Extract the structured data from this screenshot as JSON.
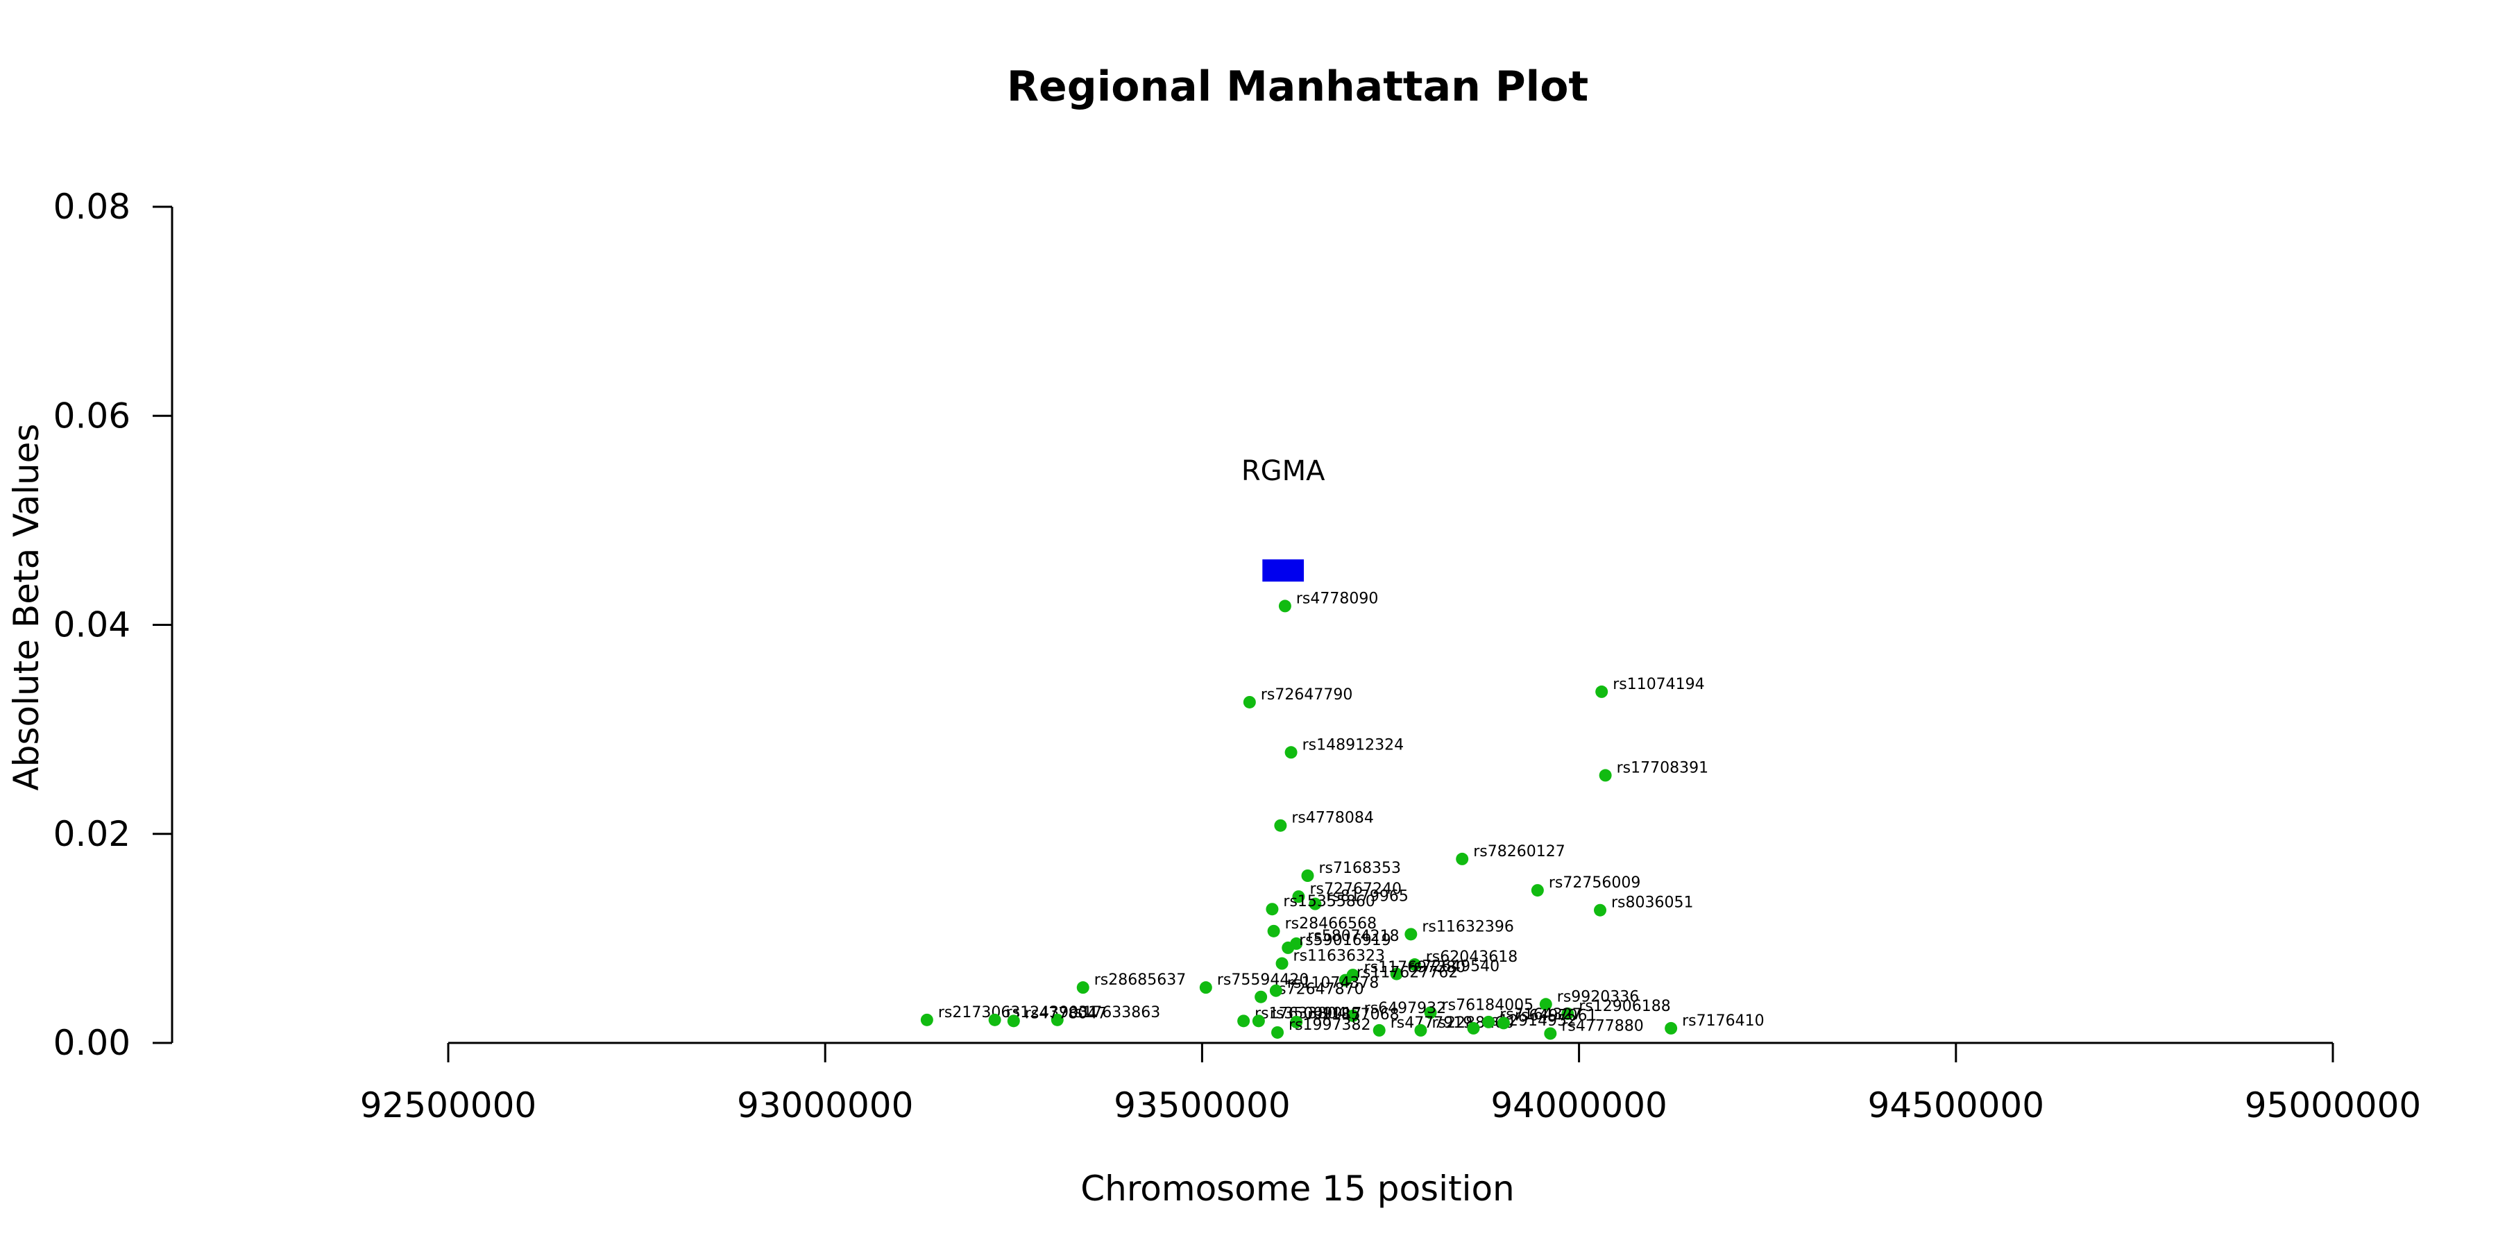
{
  "chart_data": {
    "type": "scatter",
    "title": "Regional Manhattan Plot",
    "xlabel": "Chromosome 15 position",
    "ylabel": "Absolute Beta Values",
    "xlim": [
      92100000,
      95100000
    ],
    "ylim": [
      0,
      0.08
    ],
    "x_ticks": [
      92500000,
      93000000,
      93500000,
      94000000,
      94500000,
      95000000
    ],
    "x_tick_labels": [
      "92500000",
      "93000000",
      "93500000",
      "94000000",
      "94500000",
      "95000000"
    ],
    "y_ticks": [
      0,
      0.02,
      0.04,
      0.06,
      0.08
    ],
    "y_tick_labels": [
      "0.00",
      "0.02",
      "0.04",
      "0.06",
      "0.08"
    ],
    "grid": false,
    "point_color": "#11bb11",
    "gene": {
      "name": "RGMA",
      "start": 93580000,
      "end": 93635000,
      "y": 0.0452,
      "color": "#0000ee"
    },
    "points": [
      {
        "label": "rs4778090",
        "x": 93610000,
        "y": 0.0418
      },
      {
        "label": "rs72647790",
        "x": 93563000,
        "y": 0.0326
      },
      {
        "label": "rs11074194",
        "x": 94030000,
        "y": 0.0336
      },
      {
        "label": "rs148912324",
        "x": 93618000,
        "y": 0.0278
      },
      {
        "label": "rs17708391",
        "x": 94035000,
        "y": 0.0256
      },
      {
        "label": "rs4778084",
        "x": 93604000,
        "y": 0.0208
      },
      {
        "label": "rs78260127",
        "x": 93845000,
        "y": 0.0176
      },
      {
        "label": "rs7168353",
        "x": 93640000,
        "y": 0.016
      },
      {
        "label": "rs72767240",
        "x": 93628000,
        "y": 0.014
      },
      {
        "label": "rs8179965",
        "x": 93650000,
        "y": 0.0133
      },
      {
        "label": "rs15355860",
        "x": 93593000,
        "y": 0.0128
      },
      {
        "label": "rs72756009",
        "x": 93945000,
        "y": 0.0146
      },
      {
        "label": "rs8036051",
        "x": 94028000,
        "y": 0.0127
      },
      {
        "label": "rs28466568",
        "x": 93595000,
        "y": 0.0107
      },
      {
        "label": "rs11632396",
        "x": 93777000,
        "y": 0.0104
      },
      {
        "label": "rs58074218",
        "x": 93625000,
        "y": 0.0095
      },
      {
        "label": "rs59016919",
        "x": 93614000,
        "y": 0.0091
      },
      {
        "label": "rs11636323",
        "x": 93606000,
        "y": 0.0076
      },
      {
        "label": "rs62043618",
        "x": 93782000,
        "y": 0.0075
      },
      {
        "label": "rs72649540",
        "x": 93758000,
        "y": 0.0066
      },
      {
        "label": "rs117697380",
        "x": 93700000,
        "y": 0.0065
      },
      {
        "label": "rs117627762",
        "x": 93690000,
        "y": 0.006
      },
      {
        "label": "rs28685637",
        "x": 93342000,
        "y": 0.0053
      },
      {
        "label": "rs75594420",
        "x": 93505000,
        "y": 0.0053
      },
      {
        "label": "rs72647870",
        "x": 93578000,
        "y": 0.0044
      },
      {
        "label": "rs11074378",
        "x": 93598000,
        "y": 0.005
      },
      {
        "label": "rs9920336",
        "x": 93956000,
        "y": 0.0037
      },
      {
        "label": "rs12906188",
        "x": 93985000,
        "y": 0.0028
      },
      {
        "label": "rs76184005",
        "x": 93803000,
        "y": 0.0029
      },
      {
        "label": "rs6497932",
        "x": 93700000,
        "y": 0.0026
      },
      {
        "label": "rs4777880",
        "x": 93962000,
        "y": 0.0009
      },
      {
        "label": "rs7176410",
        "x": 94122000,
        "y": 0.0014
      },
      {
        "label": "rs2173063",
        "x": 93135000,
        "y": 0.0022
      },
      {
        "label": "rs12439031",
        "x": 93225000,
        "y": 0.0022
      },
      {
        "label": "rs17633863",
        "x": 93308000,
        "y": 0.0022
      },
      {
        "label": "rs4778047",
        "x": 93250000,
        "y": 0.0021
      },
      {
        "label": "rs17633804",
        "x": 93555000,
        "y": 0.0021
      },
      {
        "label": "rs35009017",
        "x": 93575000,
        "y": 0.0021
      },
      {
        "label": "rs11857068",
        "x": 93625000,
        "y": 0.002
      },
      {
        "label": "rs1997382",
        "x": 93600000,
        "y": 0.001
      },
      {
        "label": "rs4777919",
        "x": 93735000,
        "y": 0.0012
      },
      {
        "label": "rs2288160",
        "x": 93790000,
        "y": 0.0012
      },
      {
        "label": "rs12914952",
        "x": 93860000,
        "y": 0.0014
      },
      {
        "label": "rs7164327",
        "x": 93880000,
        "y": 0.002
      },
      {
        "label": "rs6497061",
        "x": 93900000,
        "y": 0.0019
      }
    ]
  }
}
